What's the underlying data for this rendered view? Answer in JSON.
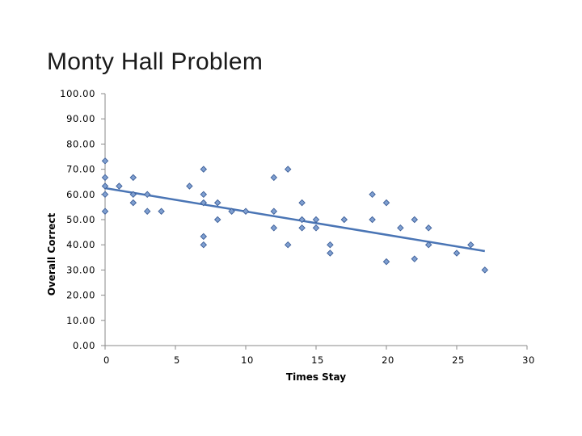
{
  "slide": {
    "title": "Monty Hall Problem"
  },
  "chart_data": {
    "type": "scatter",
    "title": "Monty Hall Problem",
    "xlabel": "Times Stay",
    "ylabel": "Overall Correct",
    "xlim": [
      0,
      30
    ],
    "ylim": [
      0,
      100
    ],
    "x_ticks": [
      "0",
      "5",
      "10",
      "15",
      "20",
      "25",
      "30"
    ],
    "y_ticks": [
      "0.00",
      "10.00",
      "20.00",
      "30.00",
      "40.00",
      "50.00",
      "60.00",
      "70.00",
      "80.00",
      "90.00",
      "100.00"
    ],
    "grid": false,
    "marker_color": "#7f9fd0",
    "marker_edge_color": "#3d5f99",
    "trendline_color": "#4a75b5",
    "points": [
      [
        0,
        73.3
      ],
      [
        0,
        66.7
      ],
      [
        0,
        63.3
      ],
      [
        0,
        60.0
      ],
      [
        0,
        53.3
      ],
      [
        1,
        63.3
      ],
      [
        2,
        66.7
      ],
      [
        2,
        60.0
      ],
      [
        2,
        56.7
      ],
      [
        3,
        60.0
      ],
      [
        3,
        53.3
      ],
      [
        4,
        53.3
      ],
      [
        6,
        63.3
      ],
      [
        7,
        70.0
      ],
      [
        7,
        60.0
      ],
      [
        7,
        56.7
      ],
      [
        7,
        43.3
      ],
      [
        7,
        40.0
      ],
      [
        8,
        56.7
      ],
      [
        8,
        50.0
      ],
      [
        9,
        53.3
      ],
      [
        10,
        53.3
      ],
      [
        12,
        66.7
      ],
      [
        12,
        53.3
      ],
      [
        12,
        46.7
      ],
      [
        13,
        70.0
      ],
      [
        13,
        40.0
      ],
      [
        14,
        56.7
      ],
      [
        14,
        50.0
      ],
      [
        14,
        46.7
      ],
      [
        15,
        50.0
      ],
      [
        15,
        46.7
      ],
      [
        16,
        40.0
      ],
      [
        16,
        36.7
      ],
      [
        17,
        50.0
      ],
      [
        19,
        60.0
      ],
      [
        19,
        50.0
      ],
      [
        20,
        56.7
      ],
      [
        20,
        33.3
      ],
      [
        21,
        46.7
      ],
      [
        22,
        50.0
      ],
      [
        22,
        34.4
      ],
      [
        23,
        46.7
      ],
      [
        23,
        40.0
      ],
      [
        25,
        36.7
      ],
      [
        26,
        40.0
      ],
      [
        27,
        30.0
      ]
    ],
    "trendline": {
      "x": [
        0,
        27
      ],
      "y": [
        62.5,
        37.5
      ]
    }
  }
}
